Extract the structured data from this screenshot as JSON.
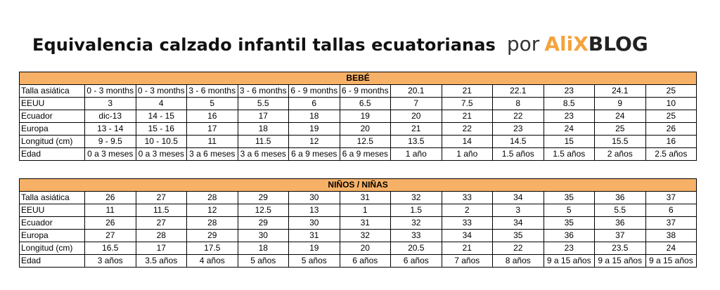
{
  "header": {
    "title": "Equivalencia calzado infantil tallas ecuatorianas",
    "by": "por",
    "brand_part1": "AliX",
    "brand_part2": "BLOG"
  },
  "colors": {
    "section_header": "#f7b167",
    "brand_accent": "#f4a33e"
  },
  "tables": [
    {
      "section": "BEBÉ",
      "rows": [
        {
          "label": "Talla asiática",
          "cells": [
            "0 - 3 months",
            "0 - 3 months",
            "3 - 6 months",
            "3 - 6 months",
            "6 - 9 months",
            "6 - 9 months",
            "20.1",
            "21",
            "22.1",
            "23",
            "24.1",
            "25"
          ]
        },
        {
          "label": "EEUU",
          "cells": [
            "3",
            "4",
            "5",
            "5.5",
            "6",
            "6.5",
            "7",
            "7.5",
            "8",
            "8.5",
            "9",
            "10"
          ]
        },
        {
          "label": "Ecuador",
          "cells": [
            "dic-13",
            "14 - 15",
            "16",
            "17",
            "18",
            "19",
            "20",
            "21",
            "22",
            "23",
            "24",
            "25"
          ]
        },
        {
          "label": "Europa",
          "cells": [
            "13 - 14",
            "15 - 16",
            "17",
            "18",
            "19",
            "20",
            "21",
            "22",
            "23",
            "24",
            "25",
            "26"
          ]
        },
        {
          "label": "Longitud (cm)",
          "cells": [
            "9 - 9.5",
            "10 - 10.5",
            "11",
            "11.5",
            "12",
            "12.5",
            "13.5",
            "14",
            "14.5",
            "15",
            "15.5",
            "16"
          ]
        },
        {
          "label": "Edad",
          "cells": [
            "0 a 3 meses",
            "0 a 3 meses",
            "3 a 6 meses",
            "3 a 6 meses",
            "6 a 9 meses",
            "6 a 9 meses",
            "1 año",
            "1 año",
            "1.5 años",
            "1.5 años",
            "2 años",
            "2.5 años"
          ]
        }
      ]
    },
    {
      "section": "NIÑOS / NIÑAS",
      "rows": [
        {
          "label": "Talla asiática",
          "cells": [
            "26",
            "27",
            "28",
            "29",
            "30",
            "31",
            "32",
            "33",
            "34",
            "35",
            "36",
            "37"
          ]
        },
        {
          "label": "EEUU",
          "cells": [
            "11",
            "11.5",
            "12",
            "12.5",
            "13",
            "1",
            "1.5",
            "2",
            "3",
            "5",
            "5.5",
            "6"
          ]
        },
        {
          "label": "Ecuador",
          "cells": [
            "26",
            "27",
            "28",
            "29",
            "30",
            "31",
            "32",
            "33",
            "34",
            "35",
            "36",
            "37"
          ]
        },
        {
          "label": "Europa",
          "cells": [
            "27",
            "28",
            "29",
            "30",
            "31",
            "32",
            "33",
            "34",
            "35",
            "36",
            "37",
            "38"
          ]
        },
        {
          "label": "Longitud (cm)",
          "cells": [
            "16.5",
            "17",
            "17.5",
            "18",
            "19",
            "20",
            "20.5",
            "21",
            "22",
            "23",
            "23.5",
            "24"
          ]
        },
        {
          "label": "Edad",
          "cells": [
            "3 años",
            "3.5 años",
            "4 años",
            "5 años",
            "5 años",
            "6 años",
            "6 años",
            "7 años",
            "8 años",
            "9 a 15 años",
            "9 a 15 años",
            "9 a 15 años"
          ]
        }
      ]
    }
  ]
}
